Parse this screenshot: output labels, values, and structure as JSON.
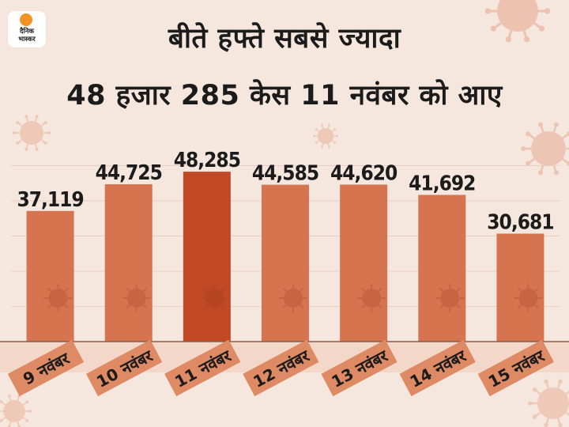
{
  "brand": {
    "logo_text_top": "दैनिक",
    "logo_text_bottom": "भास्कर",
    "sun_color": "#f29221"
  },
  "headline": {
    "line1": "बीते हफ्ते सबसे ज्यादा",
    "line2": "48 हजार 285 केस 11 नवंबर को आए"
  },
  "colors": {
    "background": "#f6e7de",
    "bar": "#d67450",
    "bar_highlight": "#c14924",
    "label_band": "#de8a64",
    "virus": "#e6a58c"
  },
  "chart_data": {
    "type": "bar",
    "categories": [
      "9 नवंबर",
      "10 नवंबर",
      "11 नवंबर",
      "12 नवंबर",
      "13 नवंबर",
      "14 नवंबर",
      "15 नवंबर"
    ],
    "values": [
      37119,
      44725,
      48285,
      44585,
      44620,
      41692,
      30681
    ],
    "value_labels": [
      "37,119",
      "44,725",
      "48,285",
      "44,585",
      "44,620",
      "41,692",
      "30,681"
    ],
    "highlight_index": 2,
    "title": "",
    "xlabel": "",
    "ylabel": "",
    "grid": true,
    "legend": "none"
  }
}
